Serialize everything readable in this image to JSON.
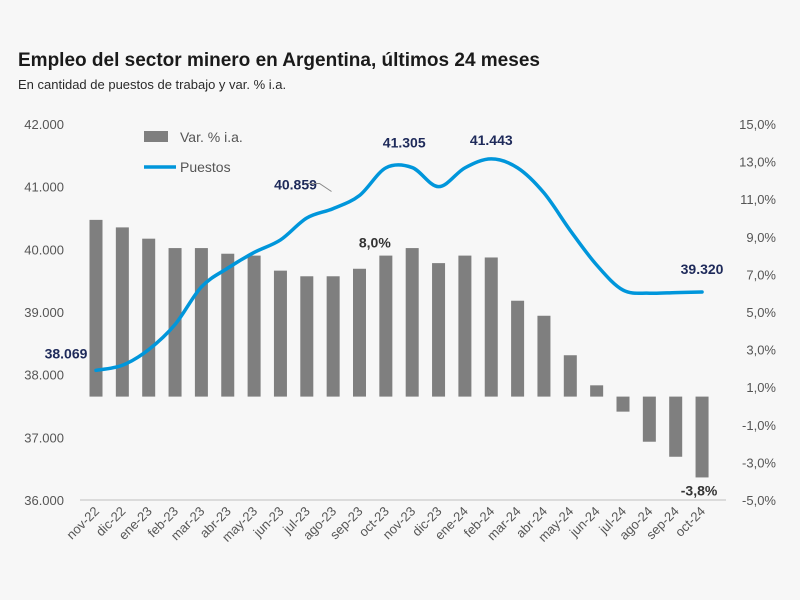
{
  "chart_data": {
    "type": "bar+line",
    "title": "Empleo del sector minero en Argentina, últimos 24 meses",
    "subtitle": "En cantidad de puestos de trabajo y var. % i.a.",
    "categories": [
      "nov-22",
      "dic-22",
      "ene-23",
      "feb-23",
      "mar-23",
      "abr-23",
      "may-23",
      "jun-23",
      "jul-23",
      "ago-23",
      "sep-23",
      "oct-23",
      "nov-23",
      "dic-23",
      "ene-24",
      "feb-24",
      "mar-24",
      "abr-24",
      "may-24",
      "jun-24",
      "jul-24",
      "ago-24",
      "sep-24",
      "oct-24"
    ],
    "series": [
      {
        "name": "Var. % i.a.",
        "kind": "bar",
        "axis": "right",
        "color": "#7f7f7f",
        "values": [
          9.9,
          9.5,
          8.9,
          8.4,
          8.4,
          8.1,
          8.0,
          7.2,
          6.9,
          6.9,
          7.3,
          8.0,
          8.4,
          7.6,
          8.0,
          7.9,
          5.6,
          4.8,
          2.7,
          1.1,
          -0.3,
          -1.9,
          -2.7,
          -3.8
        ]
      },
      {
        "name": "Puestos",
        "kind": "line",
        "axis": "left",
        "color": "#0096db",
        "values": [
          38069,
          38150,
          38400,
          38800,
          39400,
          39700,
          39950,
          40150,
          40500,
          40650,
          40859,
          41300,
          41305,
          41000,
          41300,
          41443,
          41300,
          40900,
          40300,
          39750,
          39350,
          39300,
          39310,
          39320
        ]
      }
    ],
    "y_left": {
      "min": 36000,
      "max": 42000,
      "ticks": [
        "36.000",
        "37.000",
        "38.000",
        "39.000",
        "40.000",
        "41.000",
        "42.000"
      ]
    },
    "y_right": {
      "min": -5,
      "max": 15,
      "ticks": [
        "-5,0%",
        "-3,0%",
        "-1,0%",
        "1,0%",
        "3,0%",
        "5,0%",
        "7,0%",
        "9,0%",
        "11,0%",
        "13,0%",
        "15,0%"
      ]
    },
    "annotations": {
      "line": [
        {
          "index": 0,
          "text": "38.069"
        },
        {
          "index": 10,
          "text": "40.859"
        },
        {
          "index": 12,
          "text": "41.305"
        },
        {
          "index": 15,
          "text": "41.443"
        },
        {
          "index": 23,
          "text": "39.320"
        }
      ],
      "bar": [
        {
          "index": 11,
          "text": "8,0%"
        },
        {
          "index": 23,
          "text": "-3,8%"
        }
      ]
    },
    "legend": {
      "position": "top-left",
      "entries": [
        "Var. % i.a.",
        "Puestos"
      ]
    }
  }
}
